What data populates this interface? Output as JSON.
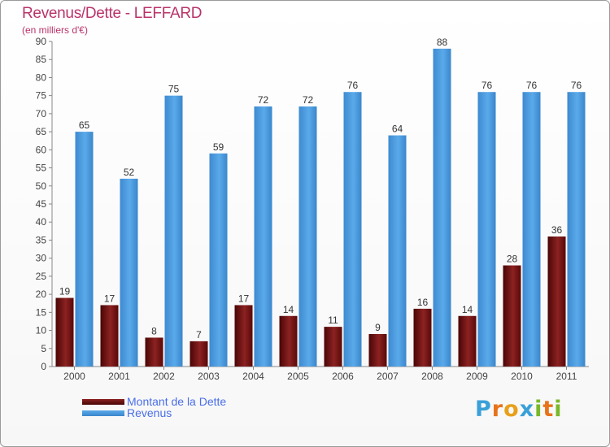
{
  "title": "Revenus/Dette - LEFFARD",
  "subtitle": "(en milliers d'€)",
  "colors": {
    "debt": "#6b0a0a",
    "revenue": "#4a9de0",
    "title": "#b8336a",
    "legend_text": "#4a6ee8"
  },
  "legend": {
    "debt_label": "Montant de la Dette",
    "revenue_label": "Revenus"
  },
  "logo": {
    "letters": [
      "P",
      "r",
      "o",
      "x",
      "i",
      "t",
      "i"
    ],
    "colors": [
      "#3aa0d8",
      "#e8731a",
      "#e8a01a",
      "#3aa0d8",
      "#7ab82a",
      "#e8731a",
      "#7ab82a"
    ]
  },
  "chart_data": {
    "type": "bar",
    "categories": [
      "2000",
      "2001",
      "2002",
      "2003",
      "2004",
      "2005",
      "2006",
      "2007",
      "2008",
      "2009",
      "2010",
      "2011"
    ],
    "series": [
      {
        "name": "Montant de la Dette",
        "values": [
          19,
          17,
          8,
          7,
          17,
          14,
          11,
          9,
          16,
          14,
          28,
          36
        ]
      },
      {
        "name": "Revenus",
        "values": [
          65,
          52,
          75,
          59,
          72,
          72,
          76,
          64,
          88,
          76,
          76,
          76
        ]
      }
    ],
    "title": "Revenus/Dette - LEFFARD",
    "ylabel": "(en milliers d'€)",
    "ylim": [
      0,
      90
    ],
    "yticks": [
      0,
      5,
      10,
      15,
      20,
      25,
      30,
      35,
      40,
      45,
      50,
      55,
      60,
      65,
      70,
      75,
      80,
      85,
      90
    ],
    "grid": false,
    "legend_position": "bottom-left"
  }
}
